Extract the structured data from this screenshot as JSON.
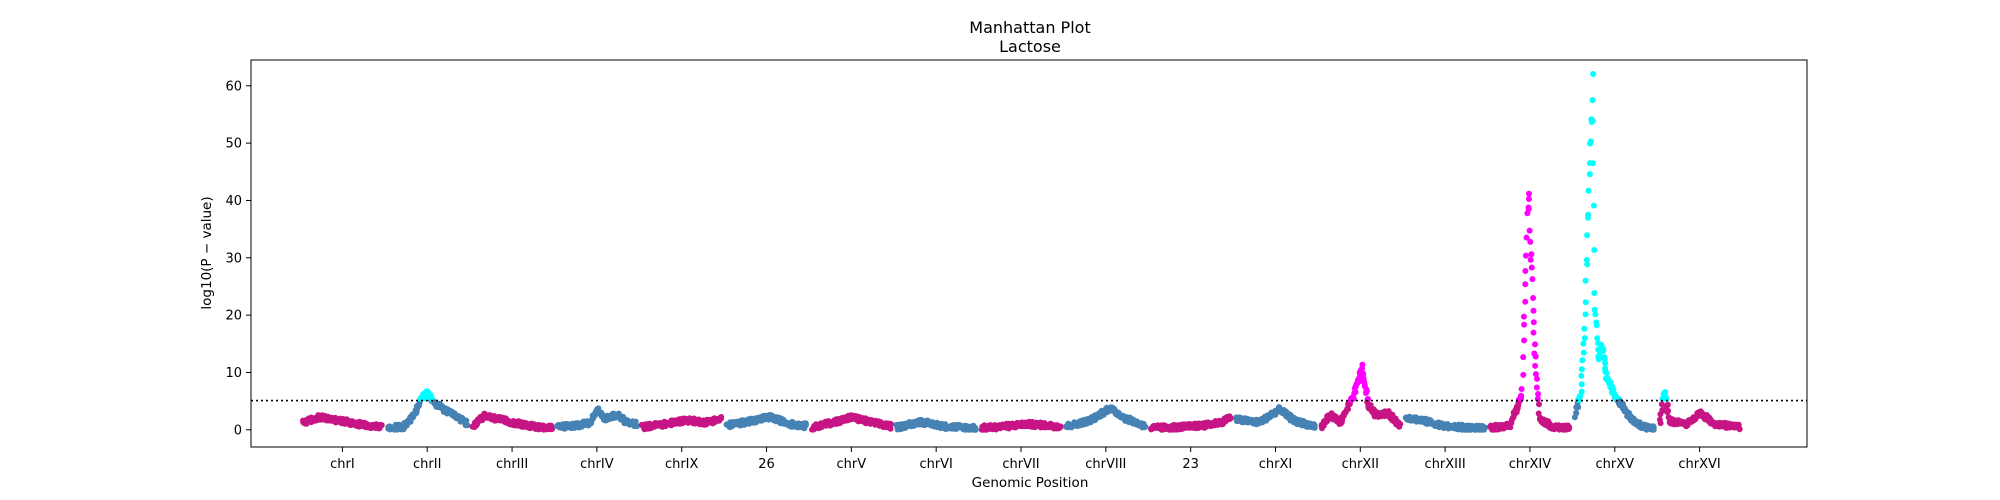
{
  "chart_data": {
    "type": "scatter",
    "title": "Manhattan Plot",
    "subtitle": "Lactose",
    "xlabel": "Genomic Position",
    "ylabel": "log10(P − value)",
    "ylim": [
      -3,
      64.5
    ],
    "yticks": [
      0,
      10,
      20,
      30,
      40,
      50,
      60
    ],
    "threshold": 5.1,
    "grid": false,
    "colors": {
      "blue": "#4682b4",
      "magenta": "#c71585",
      "cyan": "#00ffff",
      "pink": "#ff00ff"
    },
    "x_tick_labels": [
      "chrI",
      "chrII",
      "chrIII",
      "chrIV",
      "chrIX",
      "26",
      "chrV",
      "chrVI",
      "chrVII",
      "chrVIII",
      "23",
      "chrXI",
      "chrXII",
      "chrXIII",
      "chrXIV",
      "chrXV",
      "chrXVI"
    ],
    "chromosomes": [
      {
        "name": "chrI",
        "color": "magenta",
        "sig": "cyan",
        "profile": [
          [
            0,
            1.2
          ],
          [
            0.2,
            2.2
          ],
          [
            0.5,
            1.5
          ],
          [
            0.8,
            0.8
          ],
          [
            1,
            0.5
          ]
        ]
      },
      {
        "name": "chrII",
        "color": "blue",
        "sig": "cyan",
        "profile": [
          [
            0,
            0.4
          ],
          [
            0.2,
            0.5
          ],
          [
            0.33,
            2.5
          ],
          [
            0.42,
            5.3
          ],
          [
            0.5,
            6.6
          ],
          [
            0.58,
            4.8
          ],
          [
            0.75,
            3.2
          ],
          [
            1,
            1.2
          ]
        ]
      },
      {
        "name": "chrIII",
        "color": "magenta",
        "sig": "cyan",
        "profile": [
          [
            0,
            0.6
          ],
          [
            0.15,
            2.4
          ],
          [
            0.4,
            1.6
          ],
          [
            0.7,
            0.7
          ],
          [
            1,
            0.3
          ]
        ]
      },
      {
        "name": "chrIV",
        "color": "blue",
        "sig": "cyan",
        "profile": [
          [
            0,
            0.5
          ],
          [
            0.25,
            0.8
          ],
          [
            0.42,
            1.2
          ],
          [
            0.5,
            3.6
          ],
          [
            0.6,
            2.0
          ],
          [
            0.75,
            2.6
          ],
          [
            0.9,
            1.2
          ],
          [
            1,
            1.0
          ]
        ]
      },
      {
        "name": "chrIX",
        "color": "magenta",
        "sig": "cyan",
        "profile": [
          [
            0,
            0.5
          ],
          [
            0.3,
            1.0
          ],
          [
            0.55,
            1.7
          ],
          [
            0.8,
            1.3
          ],
          [
            1,
            1.9
          ]
        ]
      },
      {
        "name": "26",
        "color": "blue",
        "sig": "cyan",
        "profile": [
          [
            0,
            0.8
          ],
          [
            0.3,
            1.5
          ],
          [
            0.55,
            2.2
          ],
          [
            0.8,
            1.0
          ],
          [
            1,
            0.7
          ]
        ]
      },
      {
        "name": "chrV",
        "color": "magenta",
        "sig": "cyan",
        "profile": [
          [
            0,
            0.4
          ],
          [
            0.3,
            1.4
          ],
          [
            0.5,
            2.2
          ],
          [
            0.75,
            1.3
          ],
          [
            1,
            0.6
          ]
        ]
      },
      {
        "name": "chrVI",
        "color": "blue",
        "sig": "cyan",
        "profile": [
          [
            0,
            0.4
          ],
          [
            0.3,
            1.4
          ],
          [
            0.6,
            0.6
          ],
          [
            1,
            0.3
          ]
        ]
      },
      {
        "name": "chrVII",
        "color": "magenta",
        "sig": "cyan",
        "profile": [
          [
            0,
            0.3
          ],
          [
            0.3,
            0.6
          ],
          [
            0.55,
            1.0
          ],
          [
            0.8,
            0.8
          ],
          [
            1,
            0.6
          ]
        ]
      },
      {
        "name": "chrVIII",
        "color": "blue",
        "sig": "cyan",
        "profile": [
          [
            0,
            0.6
          ],
          [
            0.3,
            1.6
          ],
          [
            0.55,
            3.8
          ],
          [
            0.75,
            2.0
          ],
          [
            1,
            0.6
          ]
        ]
      },
      {
        "name": "23",
        "color": "magenta",
        "sig": "cyan",
        "profile": [
          [
            0,
            0.3
          ],
          [
            0.4,
            0.5
          ],
          [
            0.7,
            0.8
          ],
          [
            0.9,
            1.4
          ],
          [
            1,
            2.2
          ]
        ]
      },
      {
        "name": "chrXI",
        "color": "blue",
        "sig": "cyan",
        "profile": [
          [
            0,
            1.8
          ],
          [
            0.3,
            1.3
          ],
          [
            0.55,
            3.6
          ],
          [
            0.75,
            1.5
          ],
          [
            1,
            0.6
          ]
        ]
      },
      {
        "name": "chrXII",
        "color": "magenta",
        "sig": "pink",
        "profile": [
          [
            0,
            0.4
          ],
          [
            0.12,
            2.6
          ],
          [
            0.25,
            1.2
          ],
          [
            0.42,
            6.0
          ],
          [
            0.52,
            11.0
          ],
          [
            0.6,
            4.4
          ],
          [
            0.7,
            2.6
          ],
          [
            0.85,
            2.9
          ],
          [
            1,
            0.8
          ]
        ]
      },
      {
        "name": "chrXIII",
        "color": "blue",
        "sig": "cyan",
        "profile": [
          [
            0,
            2.2
          ],
          [
            0.25,
            1.5
          ],
          [
            0.5,
            0.6
          ],
          [
            1,
            0.2
          ]
        ]
      },
      {
        "name": "chrXIV",
        "color": "magenta",
        "sig": "pink",
        "profile": [
          [
            0,
            0.3
          ],
          [
            0.25,
            0.8
          ],
          [
            0.4,
            6.0
          ],
          [
            0.48,
            42.0
          ],
          [
            0.52,
            28.0
          ],
          [
            0.56,
            14.0
          ],
          [
            0.62,
            2.0
          ],
          [
            0.8,
            0.4
          ],
          [
            1,
            0.3
          ]
        ]
      },
      {
        "name": "chrXV",
        "color": "blue",
        "sig": "cyan",
        "profile": [
          [
            0,
            2.5
          ],
          [
            0.07,
            6.5
          ],
          [
            0.12,
            18.0
          ],
          [
            0.18,
            45.0
          ],
          [
            0.22,
            61.0
          ],
          [
            0.25,
            22.0
          ],
          [
            0.3,
            12.0
          ],
          [
            0.34,
            15.0
          ],
          [
            0.4,
            9.0
          ],
          [
            0.5,
            6.0
          ],
          [
            0.58,
            4.5
          ],
          [
            0.7,
            2.0
          ],
          [
            0.85,
            0.5
          ],
          [
            1,
            0.3
          ]
        ]
      },
      {
        "name": "chrXVI",
        "color": "magenta",
        "sig": "cyan",
        "profile": [
          [
            0,
            1.0
          ],
          [
            0.05,
            7.0
          ],
          [
            0.12,
            1.5
          ],
          [
            0.35,
            1.0
          ],
          [
            0.5,
            3.0
          ],
          [
            0.7,
            1.0
          ],
          [
            1,
            0.5
          ]
        ]
      }
    ]
  }
}
